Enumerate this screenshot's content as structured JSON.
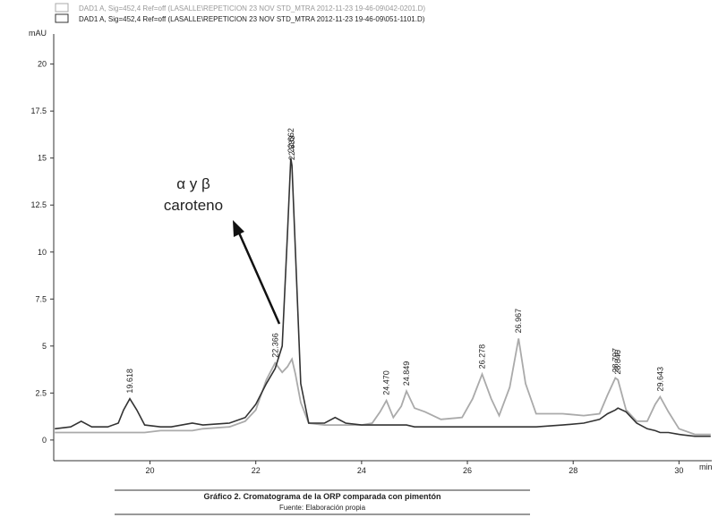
{
  "chart_data": {
    "type": "line",
    "legend": [
      "DAD1 A, Sig=452,4 Ref=off (LASALLE\\REPETICION 23 NOV STD_MTRA  2012-11-23 19-46-09\\042-0201.D)",
      "DAD1 A, Sig=452,4 Ref=off (LASALLE\\REPETICION 23 NOV STD_MTRA  2012-11-23 19-46-09\\051-1101.D)"
    ],
    "ylabel": "mAU",
    "xlabel": "min",
    "annotation": [
      "α y β",
      "caroteno"
    ],
    "caption": "Gráfico 2. Cromatograma de la ORP comparada con pimentón",
    "source": "Fuente: Elaboración propia",
    "xlim": [
      18.18,
      30.62
    ],
    "ylim": [
      -1.1,
      21.6
    ],
    "xticks": [
      20,
      22,
      24,
      26,
      28,
      30
    ],
    "yticks": [
      0,
      2.5,
      5,
      7.5,
      10,
      12.5,
      15,
      17.5,
      20
    ],
    "x": [
      18.2,
      18.5,
      18.7,
      18.9,
      19.2,
      19.4,
      19.5,
      19.618,
      19.75,
      19.9,
      20.2,
      20.4,
      20.8,
      21.0,
      21.5,
      21.8,
      22.0,
      22.2,
      22.366,
      22.5,
      22.6,
      22.662,
      22.683,
      22.75,
      22.85,
      23.0,
      23.3,
      23.5,
      23.7,
      24.0,
      24.2,
      24.35,
      24.47,
      24.6,
      24.75,
      24.849,
      25.0,
      25.2,
      25.5,
      25.9,
      26.1,
      26.278,
      26.45,
      26.6,
      26.8,
      26.967,
      27.1,
      27.3,
      27.8,
      28.2,
      28.5,
      28.65,
      28.797,
      28.846,
      29.0,
      29.2,
      29.4,
      29.55,
      29.643,
      29.8,
      30.0,
      30.3,
      30.6
    ],
    "series": [
      {
        "color": "#aaaaaa",
        "values": [
          0.4,
          0.4,
          0.4,
          0.4,
          0.4,
          0.4,
          0.4,
          0.4,
          0.4,
          0.4,
          0.5,
          0.5,
          0.5,
          0.6,
          0.7,
          1.0,
          1.6,
          3.2,
          4.1,
          3.6,
          3.9,
          4.2,
          4.3,
          3.5,
          2.0,
          0.9,
          0.8,
          0.8,
          0.8,
          0.8,
          0.9,
          1.5,
          2.1,
          1.2,
          1.8,
          2.6,
          1.7,
          1.5,
          1.1,
          1.2,
          2.2,
          3.5,
          2.2,
          1.3,
          2.8,
          5.4,
          3.0,
          1.4,
          1.4,
          1.3,
          1.4,
          2.4,
          3.3,
          3.2,
          1.6,
          1.0,
          1.0,
          1.9,
          2.3,
          1.5,
          0.6,
          0.3,
          0.3
        ]
      },
      {
        "color": "#333333",
        "values": [
          0.6,
          0.7,
          1.0,
          0.7,
          0.7,
          0.9,
          1.6,
          2.2,
          1.6,
          0.8,
          0.7,
          0.7,
          0.9,
          0.8,
          0.9,
          1.2,
          1.9,
          3.0,
          3.8,
          5.0,
          11.0,
          15.0,
          14.6,
          10.0,
          3.0,
          0.9,
          0.9,
          1.2,
          0.9,
          0.8,
          0.8,
          0.8,
          0.8,
          0.8,
          0.8,
          0.8,
          0.7,
          0.7,
          0.7,
          0.7,
          0.7,
          0.7,
          0.7,
          0.7,
          0.7,
          0.7,
          0.7,
          0.7,
          0.8,
          0.9,
          1.1,
          1.4,
          1.6,
          1.7,
          1.5,
          0.9,
          0.6,
          0.5,
          0.4,
          0.4,
          0.3,
          0.2,
          0.2
        ]
      }
    ],
    "peak_labels": [
      {
        "value": 19.618,
        "label": "19.618"
      },
      {
        "value": 22.366,
        "label": "22.366"
      },
      {
        "value": 22.662,
        "label": "22.662"
      },
      {
        "value": 22.683,
        "label": "22.683"
      },
      {
        "value": 24.47,
        "label": "24.470"
      },
      {
        "value": 24.849,
        "label": "24.849"
      },
      {
        "value": 26.278,
        "label": "26.278"
      },
      {
        "value": 26.967,
        "label": "26.967"
      },
      {
        "value": 28.797,
        "label": "28.797"
      },
      {
        "value": 28.846,
        "label": "28.846"
      },
      {
        "value": 29.643,
        "label": "29.643"
      }
    ]
  }
}
